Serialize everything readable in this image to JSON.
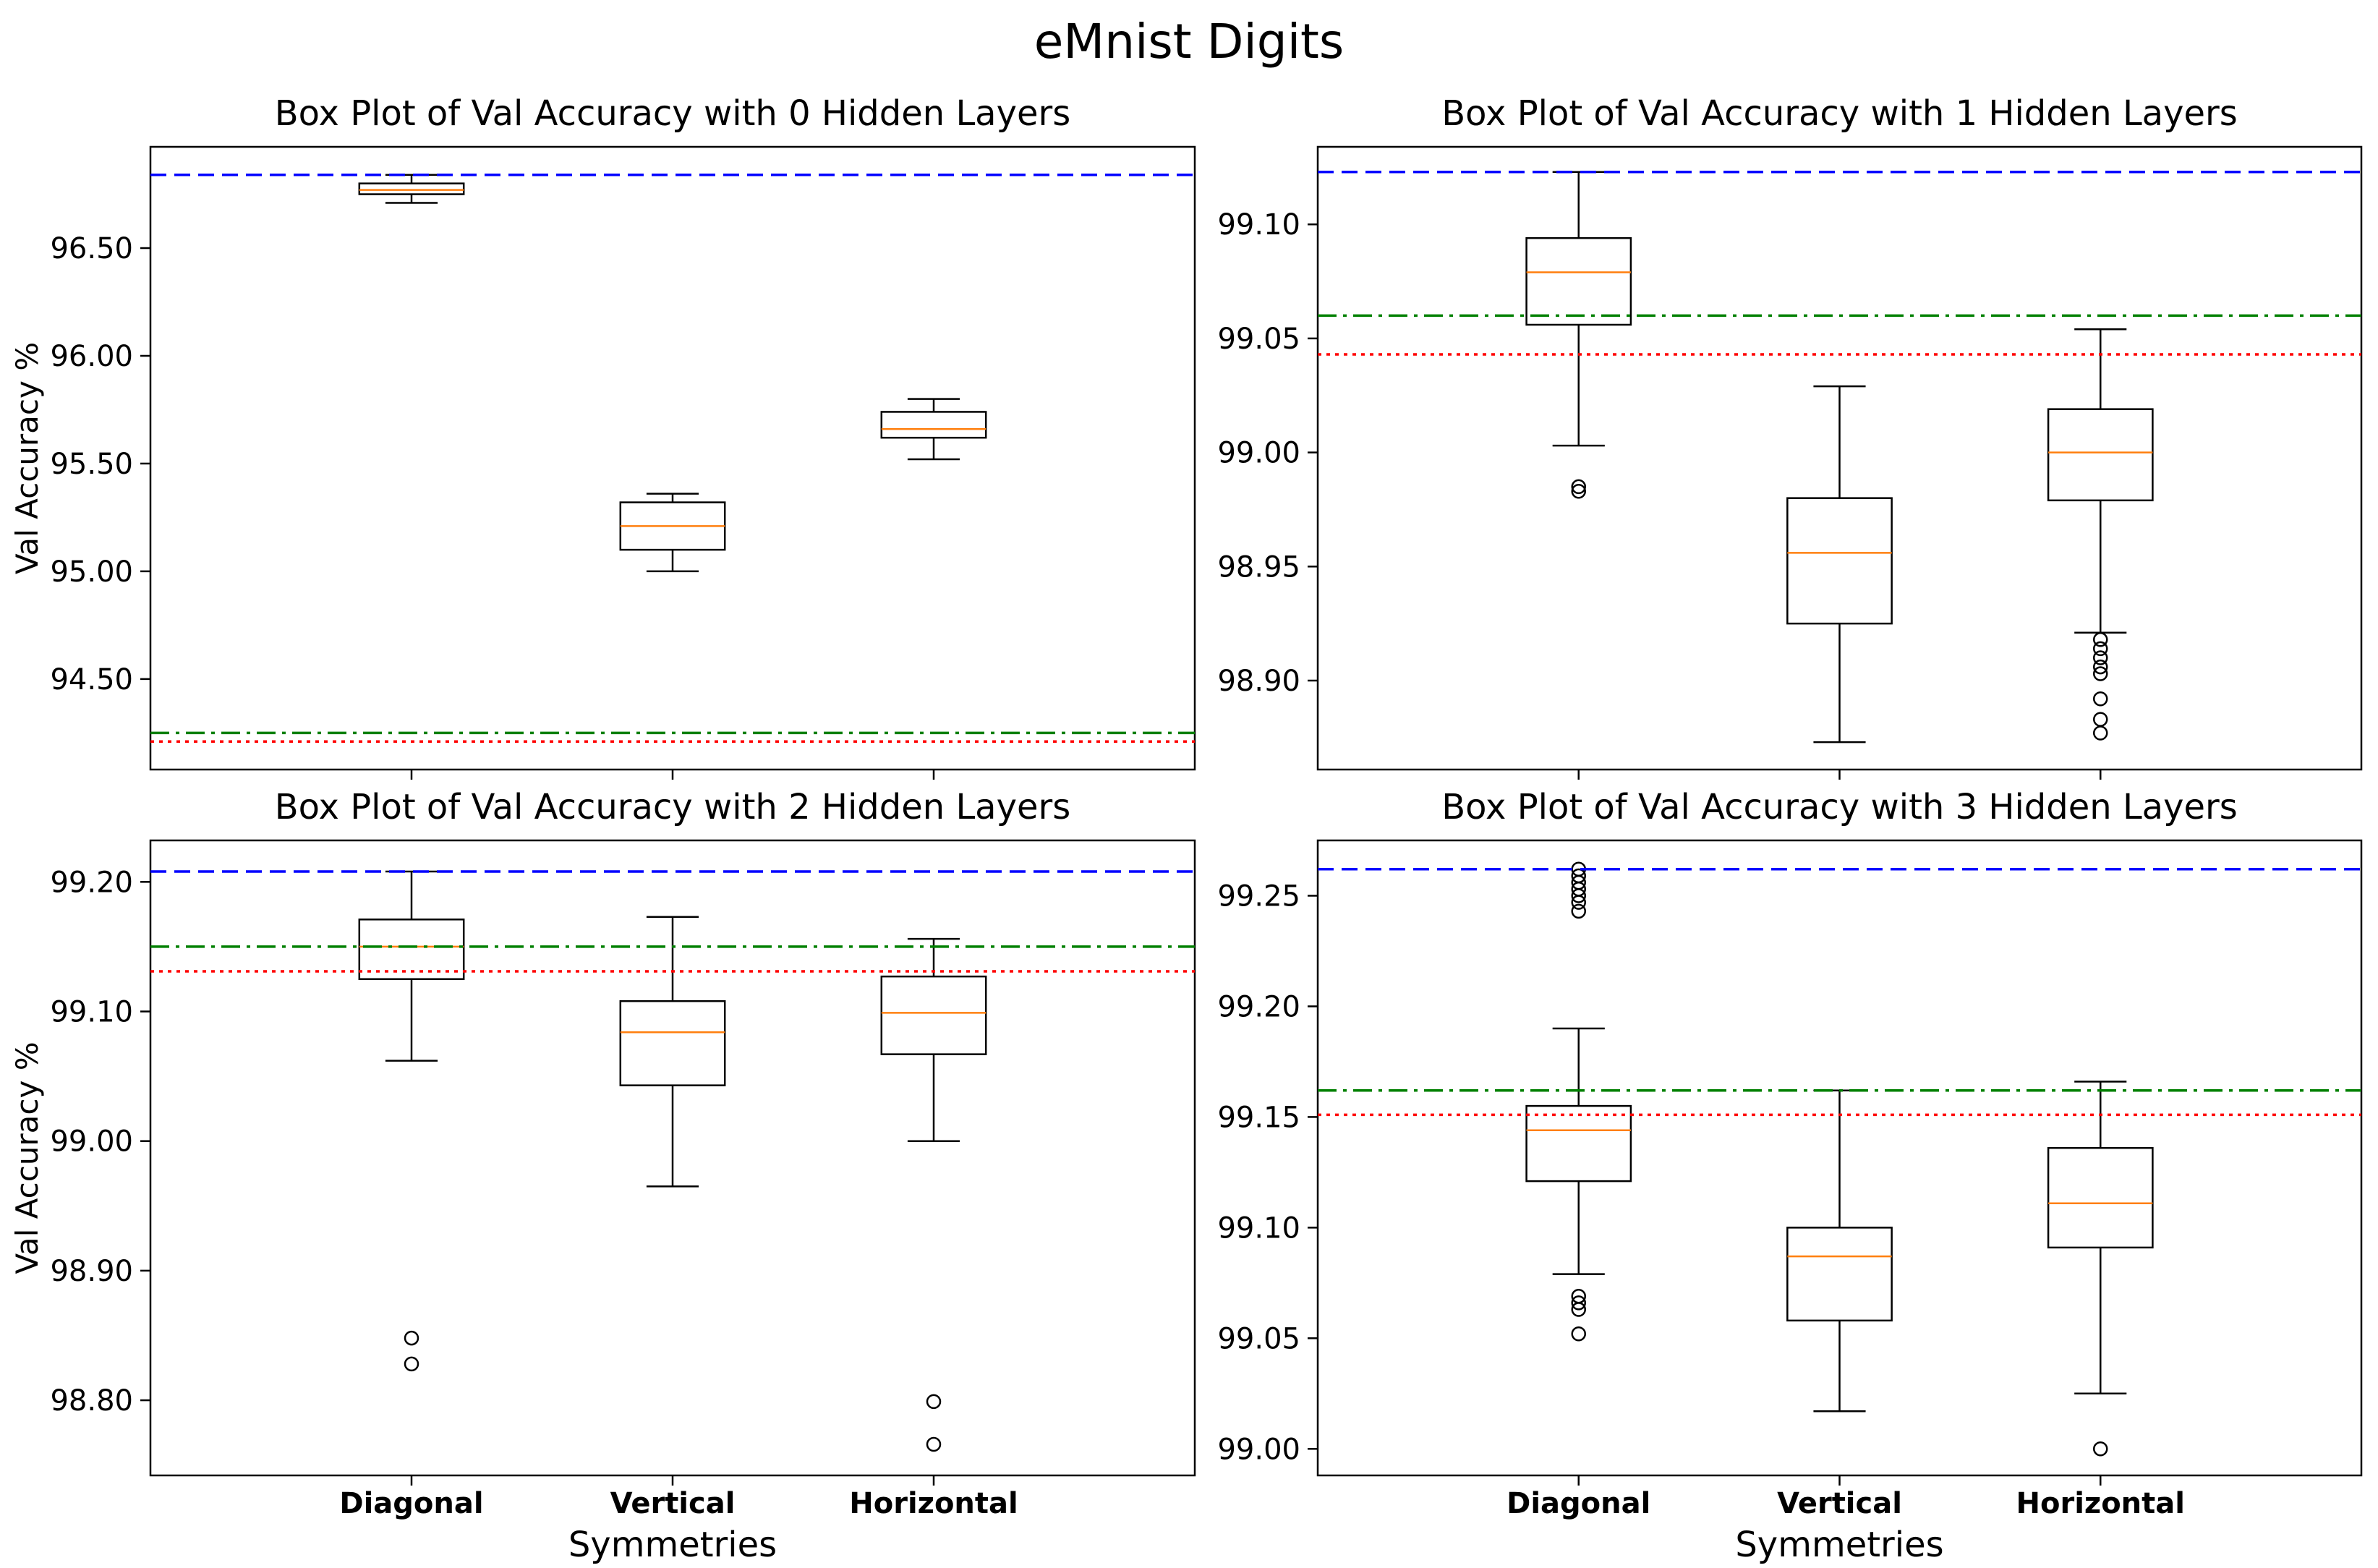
{
  "figure_title": "eMnist Digits",
  "colors": {
    "box": "#000000",
    "median": "#ff7f0e",
    "blue_line": "#0000ff",
    "green_line": "#008000",
    "red_line": "#ff0000"
  },
  "chart_data": [
    {
      "type": "box",
      "title": "Box Plot of Val Accuracy with 0 Hidden Layers",
      "ylabel": "Val Accuracy %",
      "xlabel": "",
      "categories": [
        "Diagonal",
        "Vertical",
        "Horizontal"
      ],
      "ylim": [
        94.08,
        96.97
      ],
      "yticks": [
        94.5,
        95.0,
        95.5,
        96.0,
        96.5
      ],
      "yticklabels": [
        "94.50",
        "95.00",
        "95.50",
        "96.00",
        "96.50"
      ],
      "boxes": [
        {
          "whislo": 96.71,
          "q1": 96.75,
          "med": 96.77,
          "q3": 96.8,
          "whishi": 96.84,
          "fliers": []
        },
        {
          "whislo": 95.0,
          "q1": 95.1,
          "med": 95.21,
          "q3": 95.32,
          "whishi": 95.36,
          "fliers": []
        },
        {
          "whislo": 95.52,
          "q1": 95.62,
          "med": 95.66,
          "q3": 95.74,
          "whishi": 95.8,
          "fliers": []
        }
      ],
      "hlines": [
        {
          "y": 96.84,
          "color": "#0000ff",
          "style": "dashed"
        },
        {
          "y": 94.25,
          "color": "#008000",
          "style": "dashdot"
        },
        {
          "y": 94.21,
          "color": "#ff0000",
          "style": "dotted"
        }
      ]
    },
    {
      "type": "box",
      "title": "Box Plot of Val Accuracy with 1 Hidden Layers",
      "ylabel": "",
      "xlabel": "",
      "categories": [
        "Diagonal",
        "Vertical",
        "Horizontal"
      ],
      "ylim": [
        98.861,
        99.134
      ],
      "yticks": [
        98.9,
        98.95,
        99.0,
        99.05,
        99.1
      ],
      "yticklabels": [
        "98.90",
        "98.95",
        "99.00",
        "99.05",
        "99.10"
      ],
      "boxes": [
        {
          "whislo": 99.003,
          "q1": 99.056,
          "med": 99.079,
          "q3": 99.094,
          "whishi": 99.123,
          "fliers": [
            98.985,
            98.983
          ]
        },
        {
          "whislo": 98.873,
          "q1": 98.925,
          "med": 98.956,
          "q3": 98.98,
          "whishi": 99.029,
          "fliers": []
        },
        {
          "whislo": 98.921,
          "q1": 98.979,
          "med": 99.0,
          "q3": 99.019,
          "whishi": 99.054,
          "fliers": [
            98.918,
            98.914,
            98.91,
            98.906,
            98.903,
            98.892,
            98.883,
            98.877
          ]
        }
      ],
      "hlines": [
        {
          "y": 99.123,
          "color": "#0000ff",
          "style": "dashed"
        },
        {
          "y": 99.06,
          "color": "#008000",
          "style": "dashdot"
        },
        {
          "y": 99.043,
          "color": "#ff0000",
          "style": "dotted"
        }
      ]
    },
    {
      "type": "box",
      "title": "Box Plot of Val Accuracy with 2 Hidden Layers",
      "ylabel": "Val Accuracy %",
      "xlabel": "Symmetries",
      "categories": [
        "Diagonal",
        "Vertical",
        "Horizontal"
      ],
      "ylim": [
        98.742,
        99.232
      ],
      "yticks": [
        98.8,
        98.9,
        99.0,
        99.1,
        99.2
      ],
      "yticklabels": [
        "98.80",
        "98.90",
        "99.00",
        "99.10",
        "99.20"
      ],
      "boxes": [
        {
          "whislo": 99.062,
          "q1": 99.125,
          "med": 99.15,
          "q3": 99.171,
          "whishi": 99.208,
          "fliers": [
            98.848,
            98.828
          ]
        },
        {
          "whislo": 98.965,
          "q1": 99.043,
          "med": 99.084,
          "q3": 99.108,
          "whishi": 99.173,
          "fliers": []
        },
        {
          "whislo": 99.0,
          "q1": 99.067,
          "med": 99.099,
          "q3": 99.127,
          "whishi": 99.156,
          "fliers": [
            98.799,
            98.766
          ]
        }
      ],
      "hlines": [
        {
          "y": 99.208,
          "color": "#0000ff",
          "style": "dashed"
        },
        {
          "y": 99.15,
          "color": "#008000",
          "style": "dashdot"
        },
        {
          "y": 99.131,
          "color": "#ff0000",
          "style": "dotted"
        }
      ]
    },
    {
      "type": "box",
      "title": "Box Plot of Val Accuracy with 3 Hidden Layers",
      "ylabel": "",
      "xlabel": "Symmetries",
      "categories": [
        "Diagonal",
        "Vertical",
        "Horizontal"
      ],
      "ylim": [
        98.988,
        99.275
      ],
      "yticks": [
        99.0,
        99.05,
        99.1,
        99.15,
        99.2,
        99.25
      ],
      "yticklabels": [
        "99.00",
        "99.05",
        "99.10",
        "99.15",
        "99.20",
        "99.25"
      ],
      "boxes": [
        {
          "whislo": 99.079,
          "q1": 99.121,
          "med": 99.144,
          "q3": 99.155,
          "whishi": 99.19,
          "fliers": [
            99.262,
            99.259,
            99.256,
            99.253,
            99.25,
            99.247,
            99.243,
            99.069,
            99.066,
            99.063,
            99.052
          ]
        },
        {
          "whislo": 99.017,
          "q1": 99.058,
          "med": 99.087,
          "q3": 99.1,
          "whishi": 99.162,
          "fliers": []
        },
        {
          "whislo": 99.025,
          "q1": 99.091,
          "med": 99.111,
          "q3": 99.136,
          "whishi": 99.166,
          "fliers": [
            99.0
          ]
        }
      ],
      "hlines": [
        {
          "y": 99.262,
          "color": "#0000ff",
          "style": "dashed"
        },
        {
          "y": 99.162,
          "color": "#008000",
          "style": "dashdot"
        },
        {
          "y": 99.151,
          "color": "#ff0000",
          "style": "dotted"
        }
      ]
    }
  ]
}
